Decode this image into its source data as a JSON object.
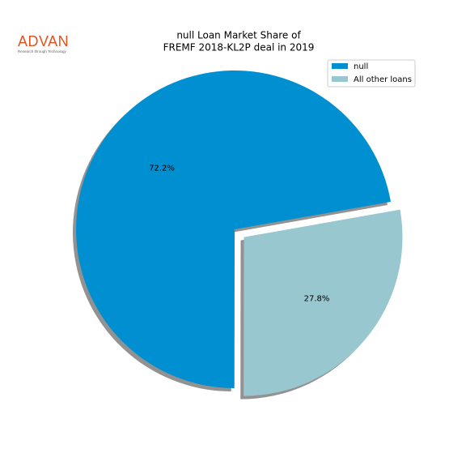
{
  "logo": {
    "text": "ADVAN",
    "tagline": "Research through Technology"
  },
  "chart_data": {
    "type": "pie",
    "title": [
      "null Loan Market Share of",
      "FREMF 2018-KL2P deal in 2019"
    ],
    "categories": [
      "null",
      "All other loans"
    ],
    "values": [
      72.2,
      27.8
    ],
    "value_labels": [
      "72.2%",
      "27.8%"
    ],
    "colors": [
      "#008fd0",
      "#99c7cf"
    ],
    "shadow": true,
    "legend": "upper right"
  }
}
